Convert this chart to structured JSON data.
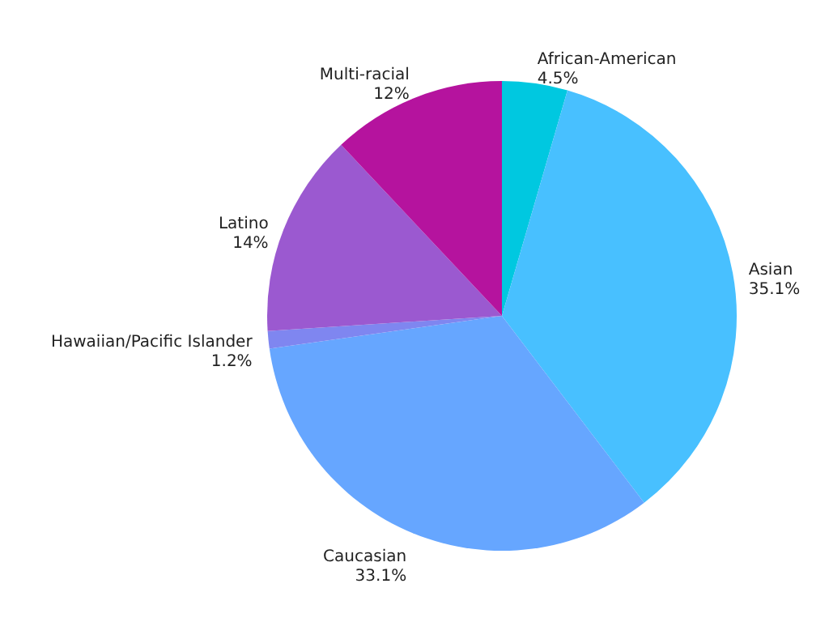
{
  "chart_data": {
    "type": "pie",
    "categories": [
      "African-American",
      "Asian",
      "Caucasian",
      "Hawaiian/Pacific Islander",
      "Latino",
      "Multi-racial"
    ],
    "values": [
      4.5,
      35.1,
      33.1,
      1.2,
      14,
      12
    ],
    "value_labels": [
      "4.5%",
      "35.1%",
      "33.1%",
      "1.2%",
      "14%",
      "12%"
    ],
    "colors": [
      "#00c8e0",
      "#48c0ff",
      "#66a6ff",
      "#7f86f0",
      "#9b59d0",
      "#b5139e"
    ]
  }
}
